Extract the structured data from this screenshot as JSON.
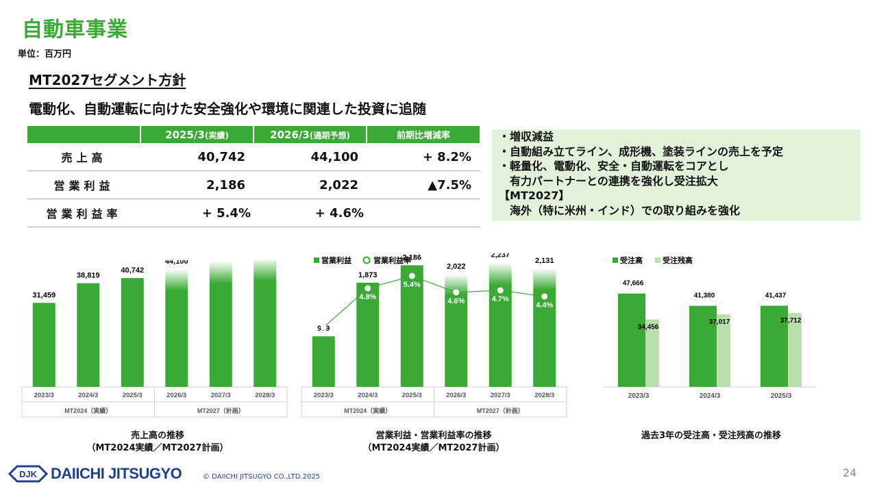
{
  "page": {
    "title": "自動車事業",
    "unit": "単位：百万円",
    "policy_heading": "MT2027セグメント方針",
    "policy_sub": "電動化、自動運転に向けた安全強化や環境に関連した投資に追随",
    "page_number": "24",
    "accent_color": "#3aaa35",
    "light_green": "#b9e0ad"
  },
  "table": {
    "col1_year": "2025/3",
    "col1_tag": "(実績)",
    "col2_year": "2026/3",
    "col2_tag": "(通期予想)",
    "col3": "前期比増減率",
    "rows": [
      {
        "label": "売上高",
        "v1": "40,742",
        "v2": "44,100",
        "v3": "+ 8.2%"
      },
      {
        "label": "営業利益",
        "v1": "2,186",
        "v2": "2,022",
        "v3": "▲7.5%"
      },
      {
        "label": "営業利益率",
        "v1": "+ 5.4%",
        "v2": "+ 4.6%",
        "v3": ""
      }
    ]
  },
  "notes": [
    "・増収減益",
    "・自動組み立てライン、成形機、塗装ラインの売上を予定",
    "・軽量化、電動化、安全・自動運転をコアとし",
    "　有力パートナーとの連携を強化し受注拡大",
    "【MT2027】",
    "　海外（特に米州・インド）での取り組みを強化"
  ],
  "chart_data": [
    {
      "type": "bar",
      "categories": [
        "2023/3",
        "2024/3",
        "2025/3",
        "2026/3",
        "2027/3",
        "2028/3"
      ],
      "values": [
        31459,
        38819,
        40742,
        44100,
        47200,
        48500
      ],
      "value_labels": [
        "31,459",
        "38,819",
        "40,742",
        "44,100",
        "47,200",
        "48,500"
      ],
      "gradient_from_index": 3,
      "group_labels": [
        "MT2024（実績）",
        "MT2027（計画）"
      ],
      "caption": [
        "売上高の推移",
        "（MT2024実績／MT2027計画）"
      ],
      "ylim": [
        0,
        50000
      ]
    },
    {
      "type": "bar",
      "categories": [
        "2023/3",
        "2024/3",
        "2025/3",
        "2026/3",
        "2027/3",
        "2028/3"
      ],
      "series": [
        {
          "name": "営業利益",
          "values": [
            909,
            1873,
            2186,
            2022,
            2237,
            2131
          ],
          "value_labels": [
            "909",
            "1,873",
            "2,186",
            "2,022",
            "2,237",
            "2,131"
          ]
        },
        {
          "name": "営業利益率",
          "type": "line",
          "values": [
            2.9,
            4.8,
            5.4,
            4.6,
            4.7,
            4.4
          ],
          "value_labels": [
            "2.9%",
            "4.8%",
            "5.4%",
            "4.6%",
            "4.7%",
            "4.4%"
          ]
        }
      ],
      "gradient_from_index": 3,
      "group_labels": [
        "MT2024（実績）",
        "MT2027（計画）"
      ],
      "caption": [
        "営業利益・営業利益率の推移",
        "（MT2024実績／MT2027計画）"
      ],
      "ylim": [
        0,
        2400
      ],
      "y2lim": [
        0,
        6.5
      ]
    },
    {
      "type": "bar",
      "categories": [
        "2023/3",
        "2024/3",
        "2025/3"
      ],
      "series": [
        {
          "name": "受注高",
          "values": [
            47666,
            41380,
            41437
          ],
          "value_labels": [
            "47,666",
            "41,380",
            "41,437"
          ],
          "color": "#3aaa35"
        },
        {
          "name": "受注残高",
          "values": [
            34456,
            37017,
            37712
          ],
          "value_labels": [
            "34,456",
            "37,017",
            "37,712"
          ],
          "color": "#b9e0ad"
        }
      ],
      "caption": [
        "過去3年の受注高・受注残高の推移"
      ],
      "ylim": [
        0,
        50000
      ]
    }
  ],
  "footer": {
    "logo_text": "DJK",
    "company": "DAIICHI JITSUGYO",
    "copyright": "© DAIICHI JITSUGYO CO.,LTD.2025"
  }
}
